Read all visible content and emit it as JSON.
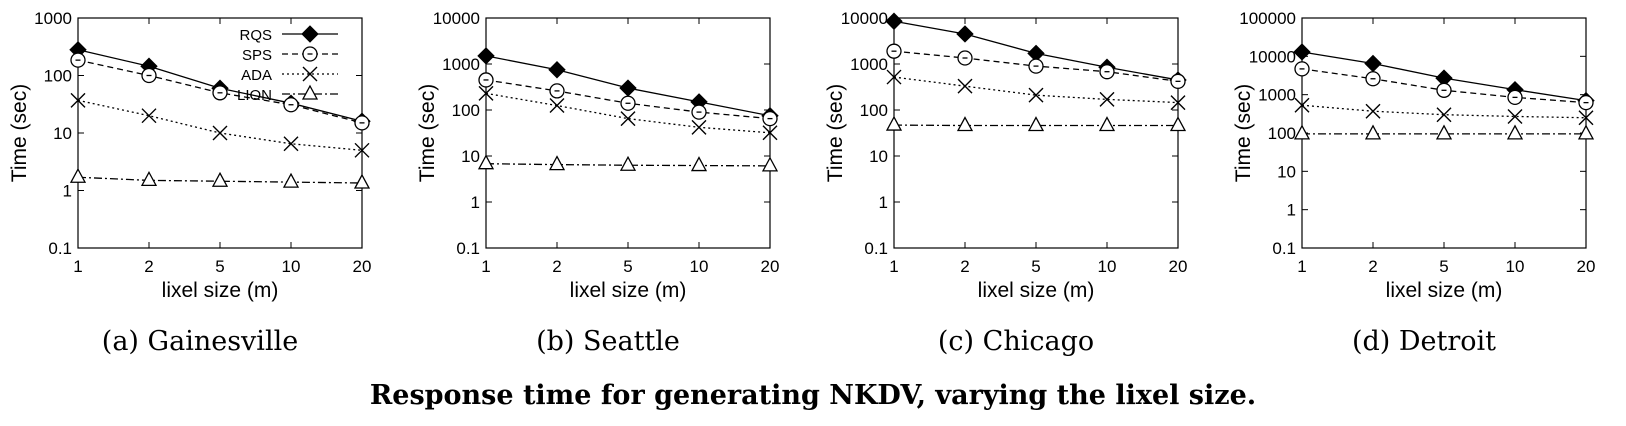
{
  "figure_caption": "Response time for generating NKDV, varying the lixel size.",
  "legend_entries": [
    "RQS",
    "SPS",
    "ADA",
    "LION"
  ],
  "chart_data": [
    {
      "type": "line",
      "caption": "(a) Gainesville",
      "xlabel": "lixel size (m)",
      "ylabel": "Time (sec)",
      "x": [
        1,
        2,
        5,
        10,
        20
      ],
      "x_scale": "categorical",
      "y_scale": "log",
      "ylim": [
        0.1,
        1000
      ],
      "yticks": [
        "0.1",
        "1",
        "10",
        "100",
        "1000"
      ],
      "legend_position": "top-right",
      "series": [
        {
          "name": "RQS",
          "values": [
            280,
            145,
            60,
            33,
            16
          ]
        },
        {
          "name": "SPS",
          "values": [
            185,
            100,
            50,
            31,
            15
          ]
        },
        {
          "name": "ADA",
          "values": [
            37,
            20,
            10,
            6.5,
            5
          ]
        },
        {
          "name": "LION",
          "values": [
            1.7,
            1.5,
            1.45,
            1.4,
            1.35
          ]
        }
      ]
    },
    {
      "type": "line",
      "caption": "(b) Seattle",
      "xlabel": "lixel size (m)",
      "ylabel": "Time (sec)",
      "x": [
        1,
        2,
        5,
        10,
        20
      ],
      "x_scale": "categorical",
      "y_scale": "log",
      "ylim": [
        0.1,
        10000
      ],
      "yticks": [
        "0.1",
        "1",
        "10",
        "100",
        "1000",
        "10000"
      ],
      "series": [
        {
          "name": "RQS",
          "values": [
            1500,
            750,
            300,
            150,
            75
          ]
        },
        {
          "name": "SPS",
          "values": [
            450,
            260,
            140,
            90,
            65
          ]
        },
        {
          "name": "ADA",
          "values": [
            230,
            125,
            65,
            42,
            32
          ]
        },
        {
          "name": "LION",
          "values": [
            6.8,
            6.5,
            6.3,
            6.2,
            6.1
          ]
        }
      ]
    },
    {
      "type": "line",
      "caption": "(c) Chicago",
      "xlabel": "lixel size (m)",
      "ylabel": "Time (sec)",
      "x": [
        1,
        2,
        5,
        10,
        20
      ],
      "x_scale": "categorical",
      "y_scale": "log",
      "ylim": [
        0.1,
        10000
      ],
      "yticks": [
        "0.1",
        "1",
        "10",
        "100",
        "1000",
        "10000"
      ],
      "series": [
        {
          "name": "RQS",
          "values": [
            8500,
            4500,
            1700,
            850,
            450
          ]
        },
        {
          "name": "SPS",
          "values": [
            1900,
            1350,
            900,
            680,
            420
          ]
        },
        {
          "name": "ADA",
          "values": [
            520,
            330,
            210,
            170,
            145
          ]
        },
        {
          "name": "LION",
          "values": [
            47,
            46,
            46,
            46,
            46
          ]
        }
      ]
    },
    {
      "type": "line",
      "caption": "(d) Detroit",
      "xlabel": "lixel size (m)",
      "ylabel": "Time (sec)",
      "x": [
        1,
        2,
        5,
        10,
        20
      ],
      "x_scale": "categorical",
      "y_scale": "log",
      "ylim": [
        0.1,
        100000
      ],
      "yticks": [
        "0.1",
        "1",
        "10",
        "100",
        "1000",
        "10000",
        "100000"
      ],
      "series": [
        {
          "name": "RQS",
          "values": [
            13000,
            6500,
            2700,
            1350,
            700
          ]
        },
        {
          "name": "SPS",
          "values": [
            4700,
            2600,
            1300,
            850,
            620
          ]
        },
        {
          "name": "ADA",
          "values": [
            530,
            370,
            300,
            270,
            250
          ]
        },
        {
          "name": "LION",
          "values": [
            95,
            95,
            95,
            95,
            95
          ]
        }
      ]
    }
  ]
}
